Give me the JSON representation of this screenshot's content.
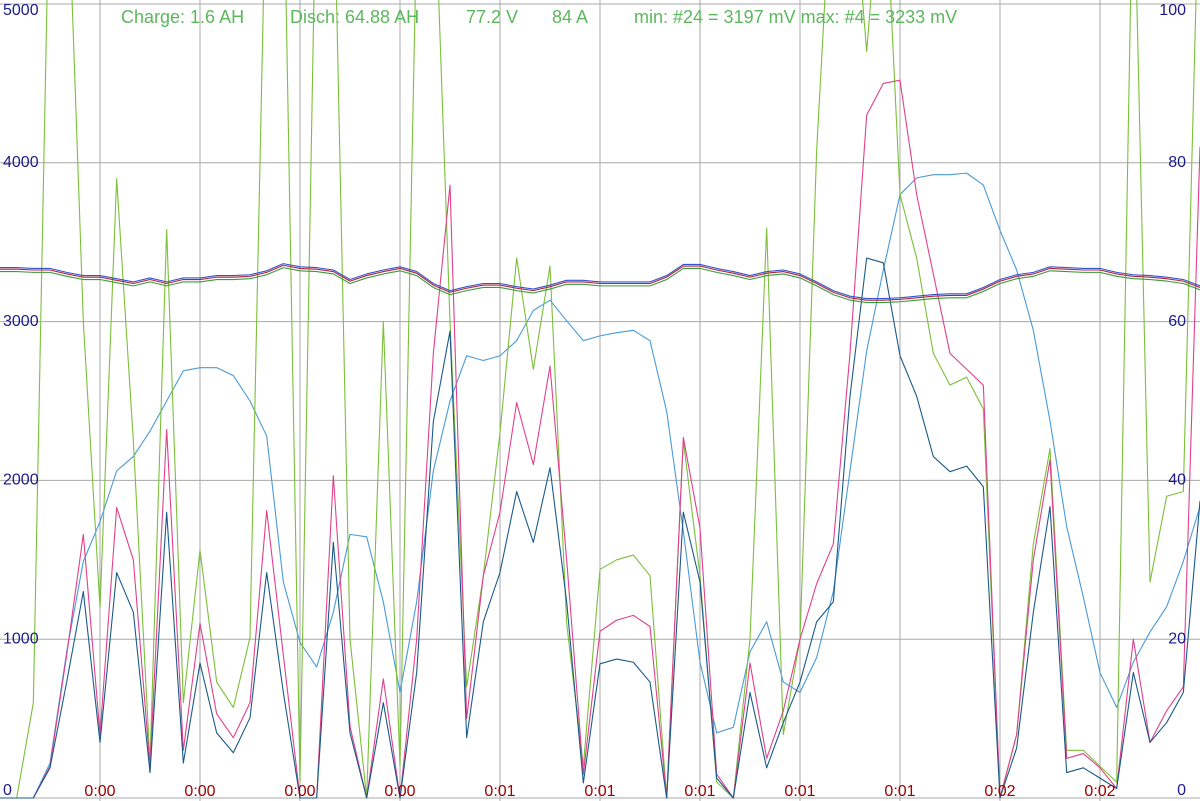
{
  "chart_data": {
    "type": "line",
    "annotations": [
      "Charge: 1.6 AH",
      "Disch: 64.88 AH",
      "77.2 V",
      "84 A",
      "min: #24 = 3197 mV max: #4 = 3233 mV"
    ],
    "annotation_color": "#5cb85c",
    "categories": [
      null,
      null,
      null,
      null,
      null,
      null,
      "0:00",
      null,
      null,
      null,
      null,
      null,
      "0:00",
      null,
      null,
      null,
      null,
      null,
      "0:00",
      null,
      null,
      null,
      null,
      null,
      "0:00",
      null,
      null,
      null,
      null,
      null,
      "0:01",
      null,
      null,
      null,
      null,
      null,
      "0:01",
      null,
      null,
      null,
      null,
      null,
      "0:01",
      null,
      null,
      null,
      null,
      null,
      "0:01",
      null,
      null,
      null,
      null,
      null,
      "0:01",
      null,
      null,
      null,
      null,
      null,
      "0:02",
      null,
      null,
      null,
      null,
      null,
      "0:02",
      null,
      null,
      null,
      null,
      null,
      null
    ],
    "ylim": [
      0,
      5000
    ],
    "yticks": [
      0,
      1000,
      2000,
      3000,
      4000,
      5000
    ],
    "y2lim": [
      0,
      100
    ],
    "y2ticks": [
      0,
      20,
      40,
      60,
      80,
      100
    ],
    "grid": true,
    "series": [
      {
        "color": "#4a9ad8",
        "values": [
          0,
          0,
          0,
          220,
          920,
          1490,
          1740,
          2060,
          2150,
          2310,
          2500,
          2690,
          2710,
          2710,
          2660,
          2500,
          2280,
          1360,
          980,
          825,
          1170,
          1660,
          1645,
          1235,
          665,
          1235,
          2060,
          2500,
          2785,
          2755,
          2785,
          2880,
          3070,
          3135,
          3005,
          2880,
          2910,
          2930,
          2945,
          2880,
          2435,
          1680,
          855,
          410,
          445,
          920,
          1110,
          730,
          665,
          885,
          1300,
          2060,
          2815,
          3325,
          3800,
          3905,
          3925,
          3925,
          3935,
          3860,
          3575,
          3325,
          2945,
          2375,
          1710,
          1265,
          790,
          570,
          855,
          1045,
          1205,
          1490,
          1835
        ]
      },
      {
        "color": "#7cbf3a",
        "values": [
          0,
          0,
          600,
          6000,
          6000,
          3000,
          1200,
          3900,
          2250,
          220,
          3580,
          600,
          1560,
          730,
          570,
          1010,
          6000,
          6000,
          100,
          6000,
          6000,
          1000,
          0,
          3000,
          200,
          5500,
          6000,
          3000,
          700,
          1400,
          2300,
          3400,
          2700,
          3350,
          1100,
          200,
          1440,
          1500,
          1530,
          1400,
          0,
          2250,
          1400,
          100,
          0,
          1000,
          3590,
          400,
          1000,
          4080,
          6000,
          6000,
          4700,
          6000,
          3800,
          3400,
          2800,
          2600,
          2650,
          2450,
          0,
          400,
          1600,
          2200,
          300,
          300,
          200,
          100,
          6000,
          1360,
          1900,
          1930,
          6000
        ]
      },
      {
        "color": "#e0408a",
        "values": [
          0,
          0,
          0,
          200,
          900,
          1660,
          400,
          1830,
          1500,
          200,
          2320,
          300,
          1100,
          530,
          380,
          600,
          1810,
          900,
          0,
          0,
          2030,
          450,
          0,
          750,
          0,
          1000,
          2800,
          3860,
          500,
          1400,
          1800,
          2490,
          2100,
          2720,
          1500,
          150,
          1050,
          1120,
          1150,
          1080,
          0,
          2270,
          1700,
          150,
          0,
          850,
          250,
          550,
          1000,
          1350,
          1600,
          2800,
          4300,
          4500,
          4520,
          3800,
          3300,
          2800,
          2700,
          2600,
          0,
          400,
          1500,
          2130,
          250,
          280,
          190,
          60,
          1000,
          350,
          550,
          700,
          4100
        ]
      },
      {
        "color": "#1a5a8a",
        "values": [
          0,
          0,
          0,
          190,
          730,
          1300,
          350,
          1420,
          1170,
          160,
          1800,
          220,
          850,
          410,
          285,
          505,
          1420,
          665,
          0,
          0,
          1610,
          410,
          0,
          600,
          0,
          790,
          2370,
          2940,
          380,
          1110,
          1420,
          1930,
          1610,
          2080,
          1235,
          95,
          845,
          875,
          855,
          730,
          0,
          1800,
          1360,
          125,
          0,
          665,
          190,
          475,
          730,
          1110,
          1235,
          2530,
          3400,
          3370,
          2785,
          2530,
          2150,
          2055,
          2090,
          1960,
          0,
          315,
          1170,
          1835,
          160,
          190,
          125,
          60,
          790,
          350,
          475,
          665,
          1870
        ]
      },
      {
        "color": "#3a9a3a",
        "values": [
          3315,
          3315,
          3310,
          3310,
          3285,
          3265,
          3265,
          3245,
          3225,
          3250,
          3225,
          3250,
          3250,
          3265,
          3265,
          3270,
          3295,
          3340,
          3320,
          3315,
          3300,
          3240,
          3275,
          3300,
          3320,
          3290,
          3215,
          3170,
          3195,
          3215,
          3215,
          3195,
          3180,
          3205,
          3235,
          3235,
          3225,
          3225,
          3225,
          3225,
          3265,
          3335,
          3335,
          3310,
          3290,
          3265,
          3290,
          3300,
          3275,
          3225,
          3170,
          3135,
          3120,
          3120,
          3125,
          3135,
          3145,
          3150,
          3150,
          3190,
          3240,
          3270,
          3285,
          3320,
          3315,
          3310,
          3310,
          3285,
          3270,
          3265,
          3255,
          3240,
          3200
        ]
      },
      {
        "color": "#3355cc",
        "values": [
          3340,
          3340,
          3335,
          3335,
          3310,
          3290,
          3290,
          3270,
          3250,
          3275,
          3250,
          3275,
          3275,
          3290,
          3290,
          3295,
          3320,
          3365,
          3345,
          3340,
          3325,
          3265,
          3300,
          3325,
          3345,
          3315,
          3240,
          3195,
          3220,
          3240,
          3240,
          3220,
          3205,
          3230,
          3260,
          3260,
          3250,
          3250,
          3250,
          3250,
          3290,
          3360,
          3360,
          3335,
          3315,
          3290,
          3315,
          3325,
          3300,
          3250,
          3195,
          3160,
          3145,
          3145,
          3150,
          3160,
          3170,
          3175,
          3175,
          3215,
          3265,
          3295,
          3310,
          3345,
          3340,
          3335,
          3335,
          3310,
          3295,
          3290,
          3280,
          3265,
          3225
        ]
      },
      {
        "color": "#b02040",
        "values": [
          3330,
          3330,
          3325,
          3325,
          3300,
          3280,
          3280,
          3260,
          3240,
          3265,
          3240,
          3265,
          3265,
          3280,
          3280,
          3285,
          3310,
          3355,
          3335,
          3330,
          3315,
          3255,
          3290,
          3315,
          3335,
          3305,
          3230,
          3185,
          3210,
          3230,
          3230,
          3210,
          3195,
          3220,
          3250,
          3250,
          3240,
          3240,
          3240,
          3240,
          3280,
          3350,
          3350,
          3325,
          3305,
          3280,
          3305,
          3315,
          3290,
          3240,
          3185,
          3150,
          3135,
          3135,
          3140,
          3150,
          3160,
          3165,
          3165,
          3205,
          3255,
          3285,
          3300,
          3335,
          3330,
          3325,
          3325,
          3300,
          3285,
          3280,
          3270,
          3255,
          3215
        ]
      }
    ]
  }
}
